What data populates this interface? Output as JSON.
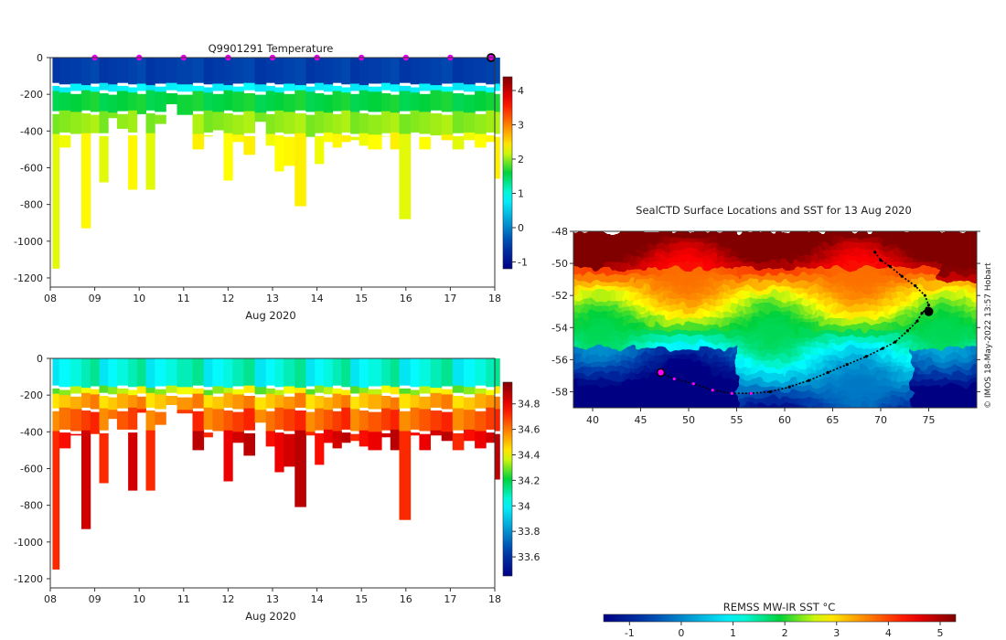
{
  "chart_data": [
    {
      "id": "temperature",
      "type": "heatmap",
      "title": "Q9901291  Temperature",
      "xlabel": "Aug 2020",
      "x_ticks": [
        "08",
        "09",
        "10",
        "11",
        "12",
        "13",
        "14",
        "15",
        "16",
        "17",
        "18"
      ],
      "x_range": [
        8,
        18
      ],
      "y_ticks": [
        "0",
        "-200",
        "-400",
        "-600",
        "-800",
        "-1000",
        "-1200"
      ],
      "y_range": [
        -1250,
        0
      ],
      "colorbar": {
        "min": -1.2,
        "max": 4.4,
        "ticks": [
          "-1",
          "0",
          "1",
          "2",
          "3",
          "4"
        ],
        "tick_values": [
          -1,
          0,
          1,
          2,
          3,
          4
        ]
      },
      "surface_markers_days": [
        9,
        10,
        11,
        12,
        13,
        14,
        15,
        16,
        17
      ],
      "latest_marker_day": 18,
      "layers": [
        {
          "from": 0,
          "to": 150,
          "value": -0.5
        },
        {
          "from": 150,
          "to": 190,
          "value": 0.8
        },
        {
          "from": 190,
          "to": 300,
          "value": 1.6
        },
        {
          "from": 300,
          "to": 420,
          "value": 2.0
        },
        {
          "from": 420,
          "to": 9999,
          "value": 2.3
        }
      ],
      "profiles": [
        {
          "day": 8.05,
          "depth": 1150
        },
        {
          "day": 8.2,
          "depth": 490
        },
        {
          "day": 8.45,
          "depth": 420
        },
        {
          "day": 8.7,
          "depth": 930
        },
        {
          "day": 8.9,
          "depth": 400
        },
        {
          "day": 9.1,
          "depth": 680
        },
        {
          "day": 9.3,
          "depth": 330
        },
        {
          "day": 9.5,
          "depth": 380
        },
        {
          "day": 9.75,
          "depth": 720
        },
        {
          "day": 9.95,
          "depth": 300
        },
        {
          "day": 10.15,
          "depth": 720
        },
        {
          "day": 10.35,
          "depth": 350
        },
        {
          "day": 10.6,
          "depth": 250
        },
        {
          "day": 10.85,
          "depth": 300
        },
        {
          "day": 11.2,
          "depth": 500
        },
        {
          "day": 11.45,
          "depth": 430
        },
        {
          "day": 11.65,
          "depth": 400
        },
        {
          "day": 11.9,
          "depth": 670
        },
        {
          "day": 12.1,
          "depth": 460
        },
        {
          "day": 12.35,
          "depth": 530
        },
        {
          "day": 12.6,
          "depth": 350
        },
        {
          "day": 12.85,
          "depth": 480
        },
        {
          "day": 13.05,
          "depth": 620
        },
        {
          "day": 13.25,
          "depth": 590
        },
        {
          "day": 13.5,
          "depth": 810
        },
        {
          "day": 13.75,
          "depth": 420
        },
        {
          "day": 13.95,
          "depth": 580
        },
        {
          "day": 14.15,
          "depth": 460
        },
        {
          "day": 14.35,
          "depth": 490
        },
        {
          "day": 14.55,
          "depth": 460
        },
        {
          "day": 14.75,
          "depth": 450
        },
        {
          "day": 14.95,
          "depth": 480
        },
        {
          "day": 15.15,
          "depth": 500
        },
        {
          "day": 15.45,
          "depth": 430
        },
        {
          "day": 15.65,
          "depth": 500
        },
        {
          "day": 15.85,
          "depth": 880
        },
        {
          "day": 16.1,
          "depth": 420
        },
        {
          "day": 16.3,
          "depth": 500
        },
        {
          "day": 16.55,
          "depth": 420
        },
        {
          "day": 16.8,
          "depth": 450
        },
        {
          "day": 17.05,
          "depth": 500
        },
        {
          "day": 17.3,
          "depth": 450
        },
        {
          "day": 17.55,
          "depth": 490
        },
        {
          "day": 17.8,
          "depth": 460
        },
        {
          "day": 18.0,
          "depth": 660
        }
      ]
    },
    {
      "id": "salinity",
      "type": "heatmap",
      "title": "",
      "xlabel": "Aug 2020",
      "x_ticks": [
        "08",
        "09",
        "10",
        "11",
        "12",
        "13",
        "14",
        "15",
        "16",
        "17",
        "18"
      ],
      "x_range": [
        8,
        18
      ],
      "y_ticks": [
        "0",
        "-200",
        "-400",
        "-600",
        "-800",
        "-1000",
        "-1200"
      ],
      "y_range": [
        -1250,
        0
      ],
      "colorbar": {
        "min": 33.45,
        "max": 34.97,
        "ticks": [
          "33.6",
          "33.8",
          "34",
          "34.2",
          "34.4",
          "34.6",
          "34.8"
        ],
        "tick_values": [
          33.6,
          33.8,
          34.0,
          34.2,
          34.4,
          34.6,
          34.8
        ]
      },
      "layers": [
        {
          "from": 0,
          "to": 160,
          "value": 34.05
        },
        {
          "from": 160,
          "to": 200,
          "value": 34.35
        },
        {
          "from": 200,
          "to": 280,
          "value": 34.52
        },
        {
          "from": 280,
          "to": 400,
          "value": 34.65
        },
        {
          "from": 400,
          "to": 9999,
          "value": 34.8
        }
      ]
    },
    {
      "id": "sst_map",
      "type": "heatmap",
      "title": "SealCTD Surface Locations and SST for 13 Aug 2020",
      "x_ticks": [
        "40",
        "45",
        "50",
        "55",
        "60",
        "65",
        "70",
        "75"
      ],
      "x_range": [
        38,
        80
      ],
      "y_ticks": [
        "-48",
        "-50",
        "-52",
        "-54",
        "-56",
        "-58"
      ],
      "y_range": [
        -59,
        -48
      ],
      "colorbar": {
        "label": "REMSS MW-IR SST °C",
        "min": -1.5,
        "max": 5.3,
        "ticks": [
          "-1",
          "0",
          "1",
          "2",
          "3",
          "4",
          "5"
        ],
        "tick_values": [
          -1,
          0,
          1,
          2,
          3,
          4,
          5
        ]
      },
      "track_lon": [
        47.1,
        48.5,
        50.5,
        52.5,
        54.5,
        56.5,
        58.5,
        60.5,
        62.5,
        64.5,
        66.5,
        68.5,
        70.2,
        71.5,
        72.8,
        73.8,
        74.3,
        74.8,
        75.0,
        74.6,
        73.6,
        72.2,
        71.0,
        70.0,
        69.4
      ],
      "track_lat": [
        -56.8,
        -57.2,
        -57.5,
        -57.9,
        -58.1,
        -58.1,
        -58.0,
        -57.7,
        -57.3,
        -56.8,
        -56.3,
        -55.8,
        -55.3,
        -54.9,
        -54.2,
        -53.6,
        -53.1,
        -52.8,
        -52.6,
        -52.0,
        -51.4,
        -50.8,
        -50.2,
        -49.8,
        -49.3
      ],
      "start": {
        "lon": 47.1,
        "lat": -56.8
      },
      "credit": "© IMOS 18-May-2022 13:57 Hobart"
    }
  ]
}
